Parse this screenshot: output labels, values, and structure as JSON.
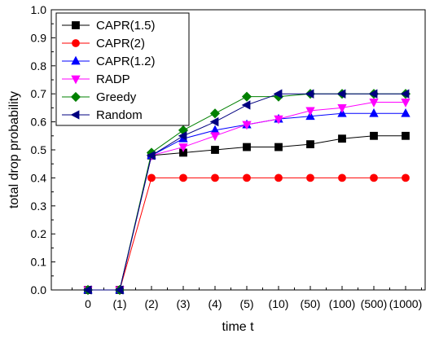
{
  "chart_data": {
    "type": "line",
    "title": "",
    "xlabel": "time t",
    "ylabel": "total drop probability",
    "categories": [
      "0",
      "(1)",
      "(2)",
      "(3)",
      "(4)",
      "(5)",
      "(10)",
      "(50)",
      "(100)",
      "(500)",
      "(1000)"
    ],
    "ylim": [
      0,
      1.0
    ],
    "yticks": [
      "0.0",
      "0.1",
      "0.2",
      "0.3",
      "0.4",
      "0.5",
      "0.6",
      "0.7",
      "0.8",
      "0.9",
      "1.0"
    ],
    "grid": false,
    "legend_position": "top-left",
    "series": [
      {
        "name": "CAPR(1.5)",
        "color": "#000000",
        "marker": "square",
        "values": [
          0,
          0,
          0.48,
          0.49,
          0.5,
          0.51,
          0.51,
          0.52,
          0.54,
          0.55,
          0.55
        ]
      },
      {
        "name": "CAPR(2)",
        "color": "#ff0000",
        "marker": "circle",
        "values": [
          0,
          0,
          0.4,
          0.4,
          0.4,
          0.4,
          0.4,
          0.4,
          0.4,
          0.4,
          0.4
        ]
      },
      {
        "name": "CAPR(1.2)",
        "color": "#0000ff",
        "marker": "triangle-up",
        "values": [
          0,
          0,
          0.48,
          0.54,
          0.57,
          0.59,
          0.61,
          0.62,
          0.63,
          0.63,
          0.63
        ]
      },
      {
        "name": "RADP",
        "color": "#ff00ff",
        "marker": "triangle-down",
        "values": [
          0,
          0,
          0.48,
          0.51,
          0.55,
          0.59,
          0.61,
          0.64,
          0.65,
          0.67,
          0.67
        ]
      },
      {
        "name": "Greedy",
        "color": "#008000",
        "marker": "diamond",
        "values": [
          0,
          0,
          0.49,
          0.57,
          0.63,
          0.69,
          0.69,
          0.7,
          0.7,
          0.7,
          0.7
        ]
      },
      {
        "name": "Random",
        "color": "#000080",
        "marker": "triangle-left",
        "values": [
          0,
          0,
          0.48,
          0.55,
          0.6,
          0.66,
          0.7,
          0.7,
          0.7,
          0.7,
          0.7
        ]
      }
    ]
  }
}
